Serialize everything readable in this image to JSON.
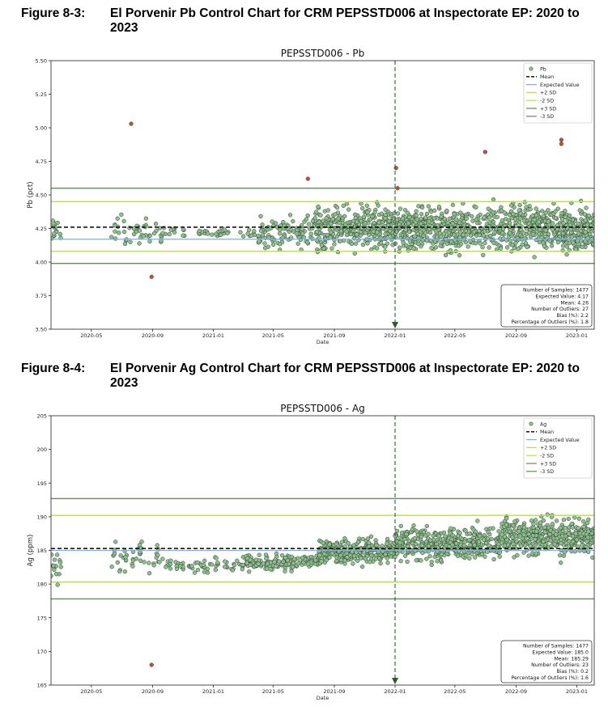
{
  "figures": [
    {
      "number": "Figure 8-3:",
      "caption": "El Porvenir Pb Control Chart for CRM PEPSSTD006 at Inspectorate EP: 2020 to 2023"
    },
    {
      "number": "Figure 8-4:",
      "caption": "El Porvenir Ag Control Chart for CRM PEPSSTD006 at Inspectorate EP: 2020 to 2023"
    }
  ],
  "chart_data": [
    {
      "type": "scatter",
      "title": "PEPSSTD006 - Pb",
      "xlabel": "Date",
      "ylabel": "Pb (pct)",
      "x_range": [
        "2020-02-10",
        "2023-02-05"
      ],
      "ylim": [
        3.5,
        5.5
      ],
      "y_ticks": [
        "3.50",
        "3.75",
        "4.00",
        "4.25",
        "4.50",
        "4.75",
        "5.00",
        "5.25",
        "5.50"
      ],
      "y_tick_values": [
        3.5,
        3.75,
        4.0,
        4.25,
        4.5,
        4.75,
        5.0,
        5.25,
        5.5
      ],
      "x_ticks": [
        "2020-05",
        "2020-09",
        "2021-01",
        "2021-05",
        "2021-09",
        "2022-01",
        "2022-05",
        "2022-09",
        "2023-01"
      ],
      "x_tick_dates": [
        "2020-05-01",
        "2020-09-01",
        "2021-01-01",
        "2021-05-01",
        "2021-09-01",
        "2022-01-01",
        "2022-05-01",
        "2022-09-01",
        "2023-01-01"
      ],
      "reference_lines": {
        "mean": 4.26,
        "expected_value": 4.17,
        "plus_2sd": 4.45,
        "minus_2sd": 4.08,
        "plus_3sd": 4.55,
        "minus_3sd": 3.99
      },
      "vertical_marker": "2022-01-01",
      "samples_cloud": [
        {
          "from": "2020-02-10",
          "to": "2020-03-01",
          "center": 4.22,
          "spread": 0.09,
          "count": 14
        },
        {
          "from": "2020-06-10",
          "to": "2020-09-20",
          "center": 4.22,
          "spread": 0.11,
          "count": 45
        },
        {
          "from": "2020-09-20",
          "to": "2021-04-01",
          "center": 4.22,
          "spread": 0.03,
          "count": 45
        },
        {
          "from": "2021-04-01",
          "to": "2021-07-15",
          "center": 4.22,
          "spread": 0.09,
          "count": 95
        },
        {
          "from": "2021-07-15",
          "to": "2021-12-31",
          "center": 4.25,
          "spread": 0.14,
          "count": 320
        },
        {
          "from": "2022-01-01",
          "to": "2022-08-15",
          "center": 4.24,
          "spread": 0.15,
          "count": 470
        },
        {
          "from": "2022-08-15",
          "to": "2023-02-05",
          "center": 4.25,
          "spread": 0.15,
          "count": 400
        }
      ],
      "outliers": [
        {
          "x": "2020-07-20",
          "y": 5.03
        },
        {
          "x": "2020-08-30",
          "y": 3.89
        },
        {
          "x": "2021-07-10",
          "y": 4.62
        },
        {
          "x": "2022-01-03",
          "y": 4.7
        },
        {
          "x": "2022-01-06",
          "y": 4.55
        },
        {
          "x": "2022-07-01",
          "y": 4.82
        },
        {
          "x": "2022-12-01",
          "y": 4.91
        },
        {
          "x": "2022-12-01",
          "y": 4.88
        }
      ],
      "legend": {
        "position": "top-right",
        "entries": [
          "Pb",
          "Mean",
          "Expected Value",
          "+2 SD",
          "-2 SD",
          "+3 SD",
          "-3 SD"
        ]
      },
      "stats_box": [
        "Number of Samples: 1477",
        "Expected Value: 4.17",
        "Mean: 4.26",
        "Number of Outliers: 27",
        "Bias (%): 2.2",
        "Percentage of Outliers (%): 1.8"
      ],
      "colors": {
        "points": "#8fbf8f",
        "outliers": "#b5533c",
        "mean": "#000000",
        "expected": "#7aaef0",
        "sd2": "#b7e23c",
        "sd3": "#5a8f5a",
        "marker": "#2f5a2f"
      }
    },
    {
      "type": "scatter",
      "title": "PEPSSTD006 - Ag",
      "xlabel": "Date",
      "ylabel": "Ag (ppm)",
      "x_range": [
        "2020-02-10",
        "2023-02-05"
      ],
      "ylim": [
        165,
        205
      ],
      "y_ticks": [
        "165",
        "170",
        "175",
        "180",
        "185",
        "190",
        "195",
        "200",
        "205"
      ],
      "y_tick_values": [
        165,
        170,
        175,
        180,
        185,
        190,
        195,
        200,
        205
      ],
      "x_ticks": [
        "2020-05",
        "2020-09",
        "2021-01",
        "2021-05",
        "2021-09",
        "2022-01",
        "2022-05",
        "2022-09",
        "2023-01"
      ],
      "x_tick_dates": [
        "2020-05-01",
        "2020-09-01",
        "2021-01-01",
        "2021-05-01",
        "2021-09-01",
        "2022-01-01",
        "2022-05-01",
        "2022-09-01",
        "2023-01-01"
      ],
      "reference_lines": {
        "mean": 185.29,
        "expected_value": 185.0,
        "plus_2sd": 190.2,
        "minus_2sd": 180.3,
        "plus_3sd": 192.7,
        "minus_3sd": 177.8
      },
      "vertical_marker": "2022-01-01",
      "samples_cloud": [
        {
          "from": "2020-02-10",
          "to": "2020-03-01",
          "center": 182.5,
          "spread": 1.8,
          "count": 16
        },
        {
          "from": "2020-06-10",
          "to": "2020-09-20",
          "center": 184.0,
          "spread": 2.2,
          "count": 45
        },
        {
          "from": "2020-09-20",
          "to": "2021-03-01",
          "center": 182.7,
          "spread": 0.9,
          "count": 60
        },
        {
          "from": "2021-03-01",
          "to": "2021-08-01",
          "center": 183.3,
          "spread": 1.0,
          "count": 160
        },
        {
          "from": "2021-08-01",
          "to": "2021-12-31",
          "center": 184.8,
          "spread": 1.4,
          "count": 300
        },
        {
          "from": "2022-01-01",
          "to": "2022-08-01",
          "center": 186.0,
          "spread": 2.2,
          "count": 420
        },
        {
          "from": "2022-08-01",
          "to": "2023-02-05",
          "center": 187.0,
          "spread": 2.2,
          "count": 420
        }
      ],
      "outliers": [
        {
          "x": "2020-08-30",
          "y": 168.0
        }
      ],
      "legend": {
        "position": "top-right",
        "entries": [
          "Ag",
          "Mean",
          "Expected Value",
          "+2 SD",
          "-2 SD",
          "+3 SD",
          "-3 SD"
        ]
      },
      "stats_box": [
        "Number of Samples: 1477",
        "Expected Value: 185.0",
        "Mean: 185.29",
        "Number of Outliers: 23",
        "Bias (%): 0.2",
        "Percentage of Outliers (%): 1.6"
      ],
      "colors": {
        "points": "#8fbf8f",
        "outliers": "#b5533c",
        "mean": "#000000",
        "expected": "#7aaef0",
        "sd2": "#b7e23c",
        "sd3": "#5a8f5a",
        "marker": "#2f5a2f"
      }
    }
  ]
}
